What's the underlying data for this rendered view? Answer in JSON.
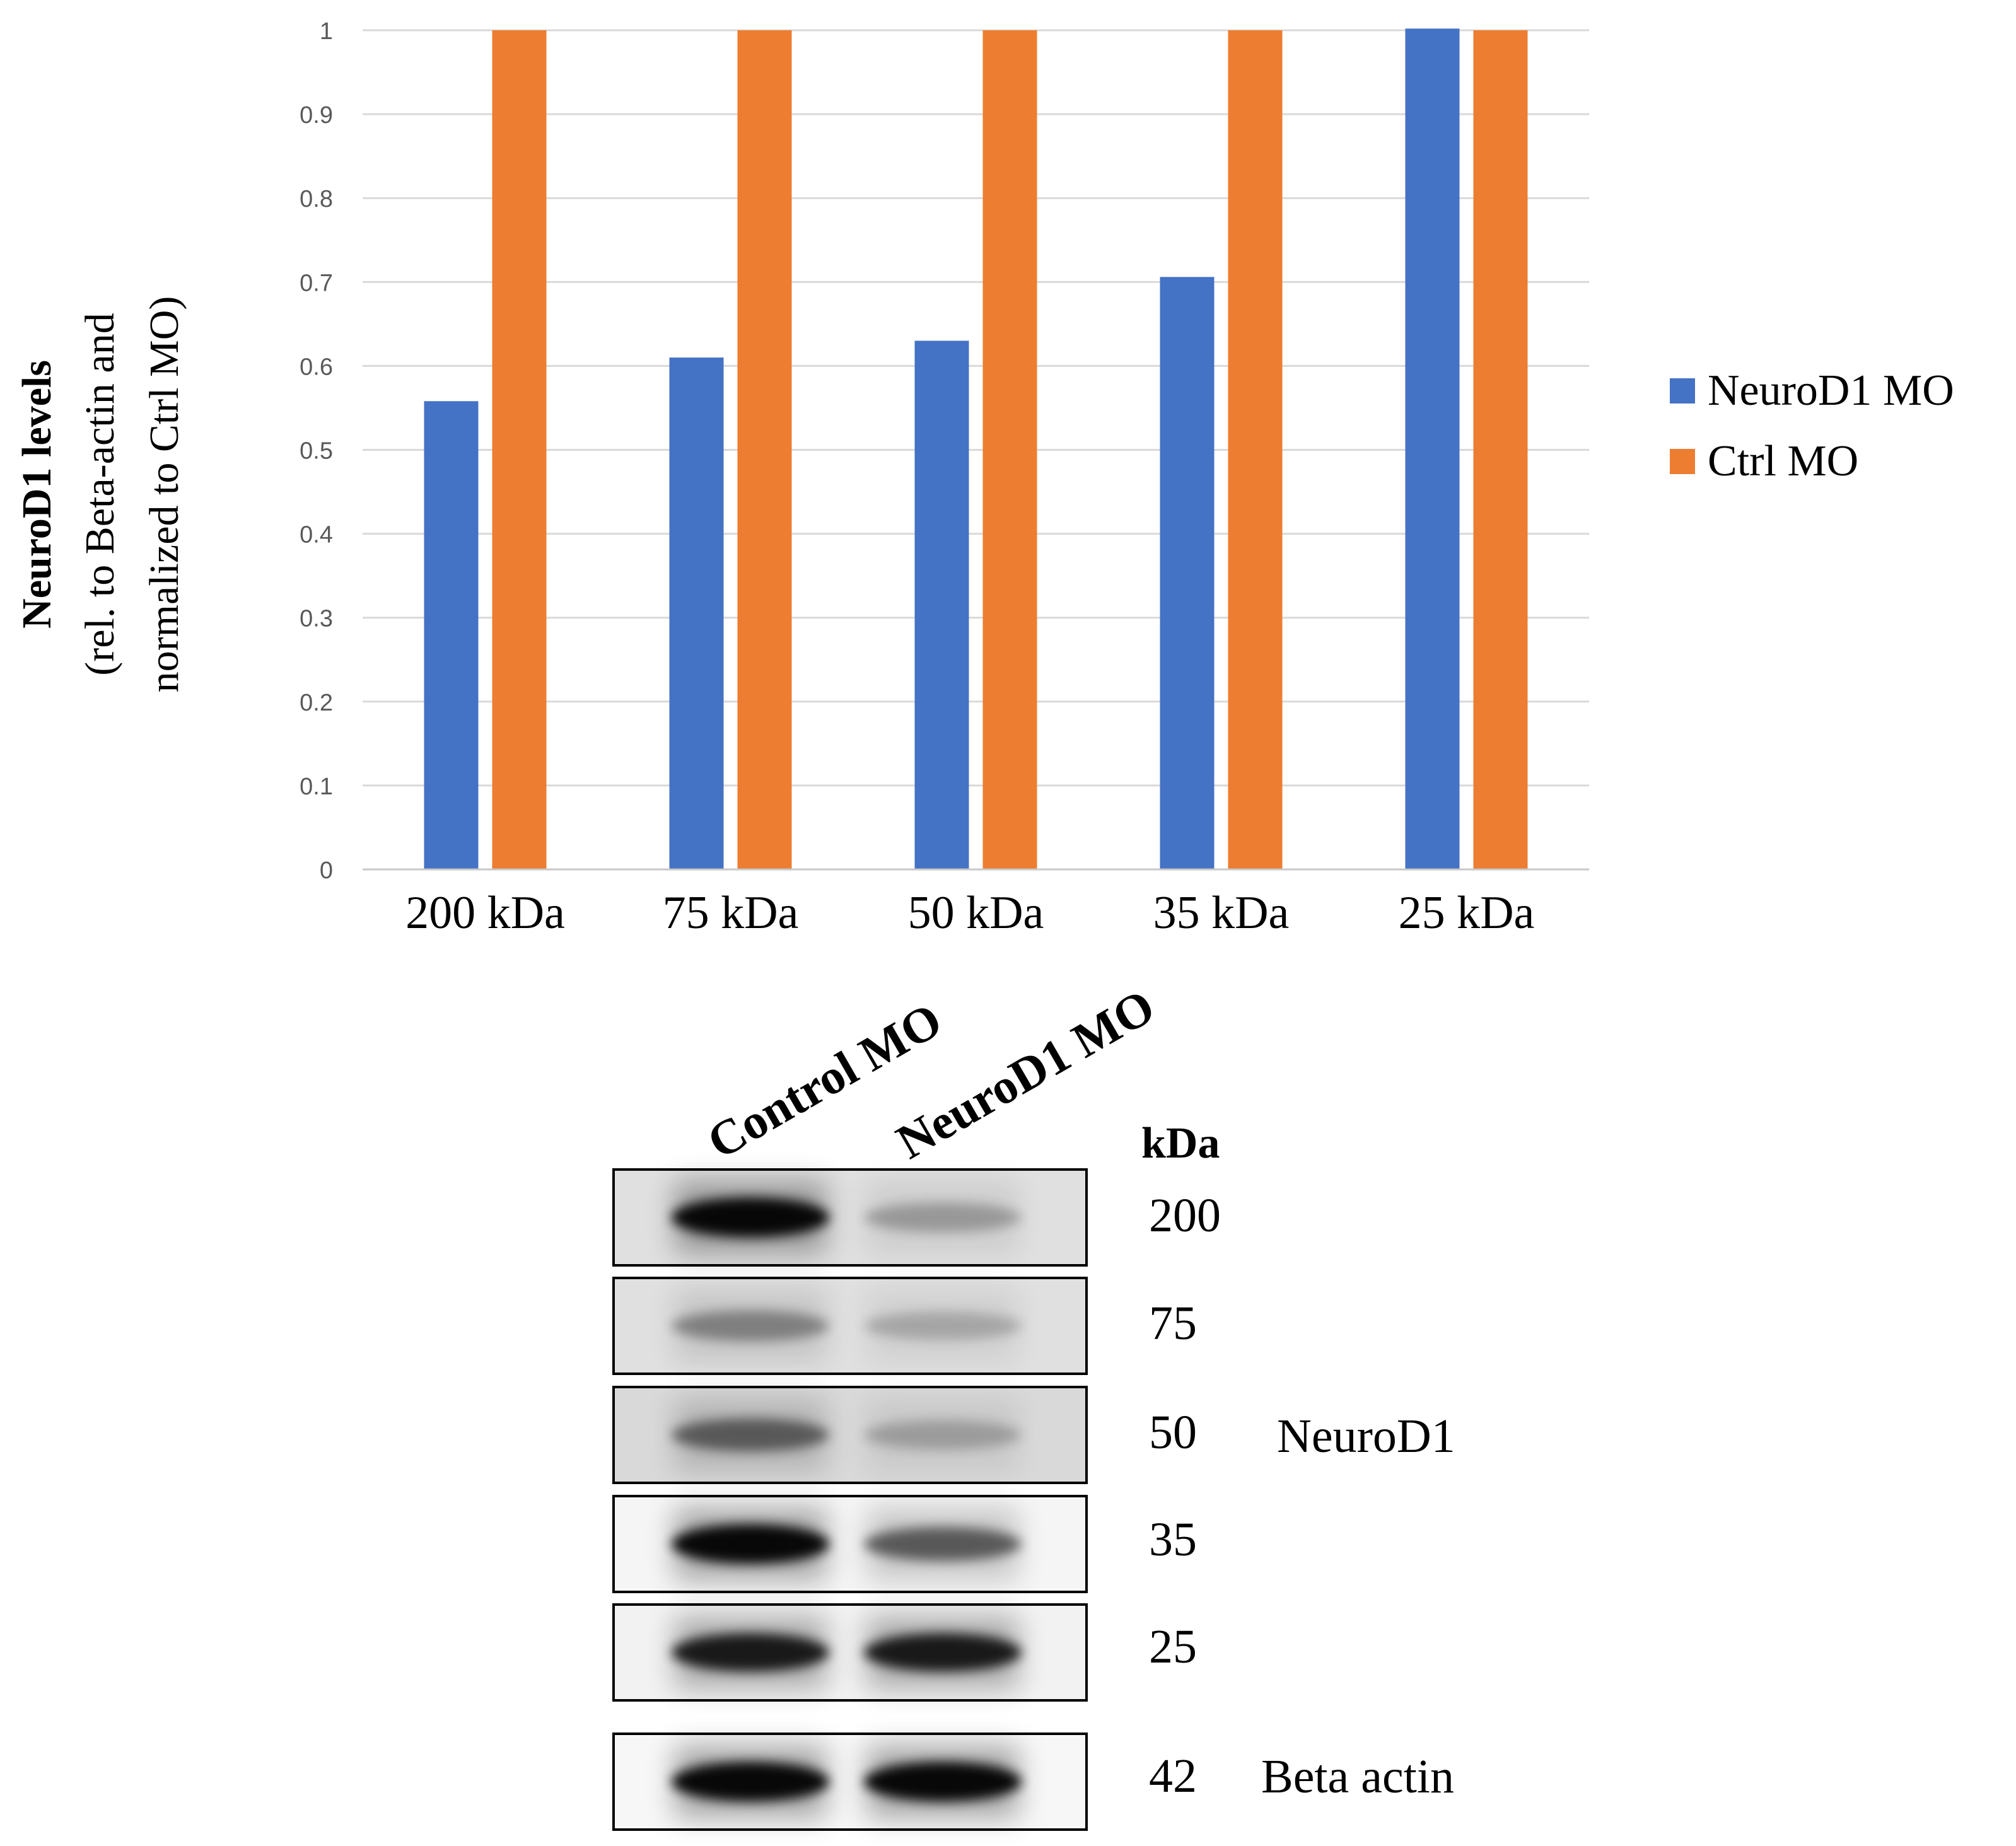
{
  "chart_data": {
    "type": "bar",
    "categories": [
      "200 kDa",
      "75 kDa",
      "50 kDa",
      "35 kDa",
      "25 kDa"
    ],
    "series": [
      {
        "name": "NeuroD1 MO",
        "values": [
          0.558,
          0.61,
          0.63,
          0.706,
          1.002
        ],
        "color": "#4472C4"
      },
      {
        "name": "Ctrl MO",
        "values": [
          1.0,
          1.0,
          1.0,
          1.0,
          1.0
        ],
        "color": "#ED7D31"
      }
    ],
    "yticks": [
      "0",
      "0.1",
      "0.2",
      "0.3",
      "0.4",
      "0.5",
      "0.6",
      "0.7",
      "0.8",
      "0.9",
      "1"
    ],
    "ylim": [
      0,
      1
    ],
    "ylabel_line1": "NeuroD1 levels",
    "ylabel_line2": "(rel. to Beta-actin and",
    "ylabel_line3": "normalized to Ctrl MO)",
    "legend_position": "right",
    "grid": true
  },
  "blot": {
    "lane_labels": [
      "Control MO",
      "NeuroD1 MO"
    ],
    "kda_header": "kDa",
    "panels": [
      {
        "kda": "200",
        "control_intensity": 0.95,
        "neuro_intensity": 0.25,
        "bg": 0.12
      },
      {
        "kda": "75",
        "control_intensity": 0.35,
        "neuro_intensity": 0.2,
        "bg": 0.12
      },
      {
        "kda": "50",
        "control_intensity": 0.5,
        "neuro_intensity": 0.22,
        "bg": 0.15
      },
      {
        "kda": "35",
        "control_intensity": 0.95,
        "neuro_intensity": 0.55,
        "bg": 0.04
      },
      {
        "kda": "25",
        "control_intensity": 0.85,
        "neuro_intensity": 0.85,
        "bg": 0.05
      },
      {
        "kda": "42",
        "control_intensity": 0.95,
        "neuro_intensity": 0.95,
        "bg": 0.03
      }
    ],
    "neurod1_label": "NeuroD1",
    "beta_actin_label": "Beta actin"
  }
}
